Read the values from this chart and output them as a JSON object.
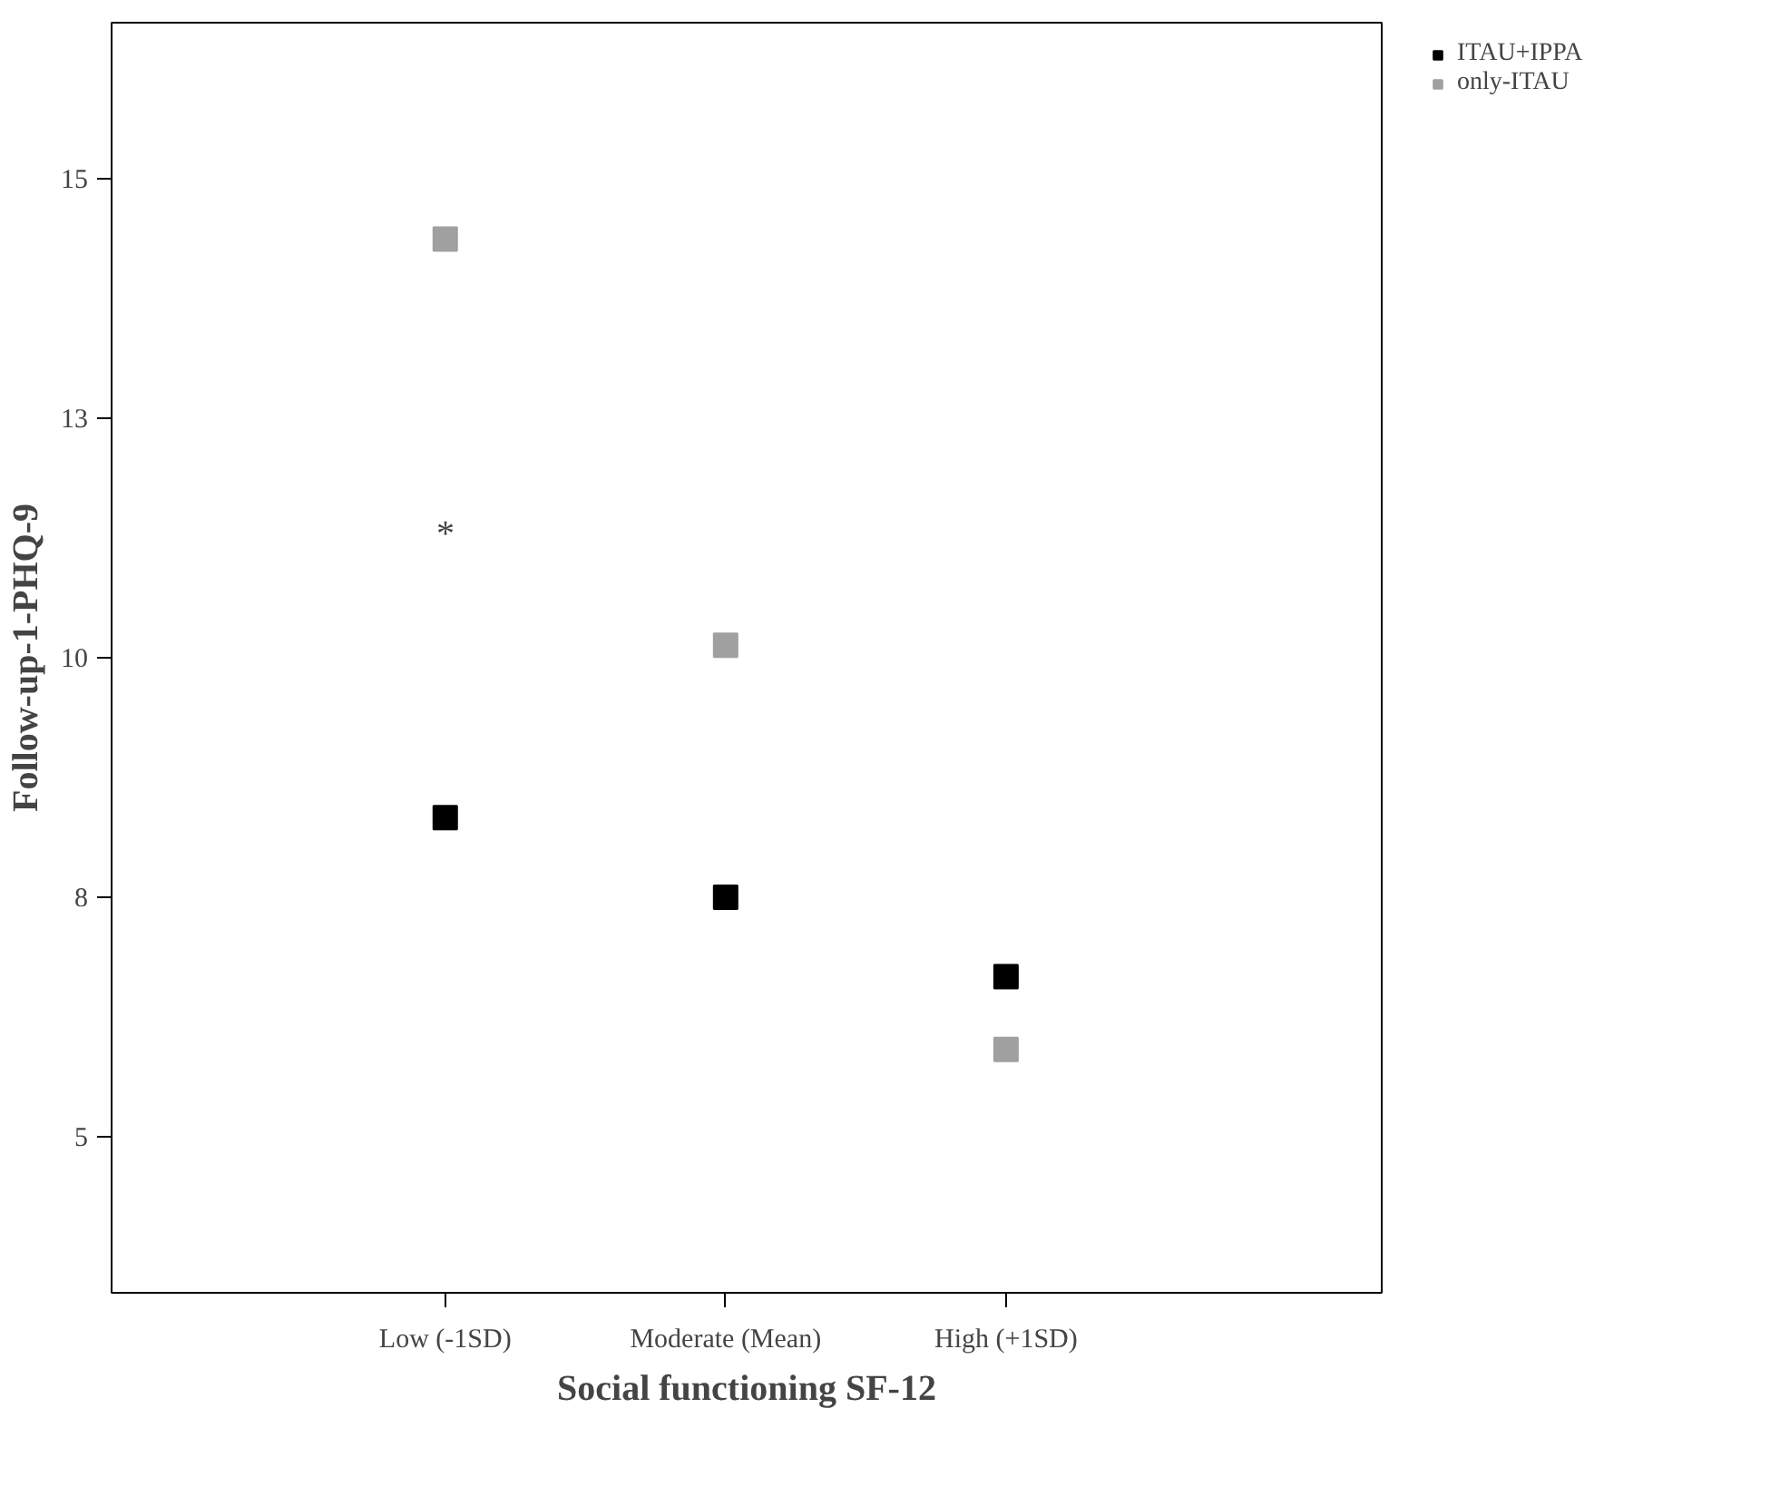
{
  "chart_data": {
    "type": "scatter",
    "xlabel": "Social functioning SF-12",
    "ylabel": "Follow-up-1-PHQ-9",
    "categories": [
      "Low (-1SD)",
      "Moderate (Mean)",
      "High (+1SD)"
    ],
    "series": [
      {
        "name": "ITAU+IPPA",
        "color": "#000000",
        "values": [
          8.33,
          7.5,
          6.67
        ]
      },
      {
        "name": "only-ITAU",
        "color": "#a0a0a0",
        "values": [
          14.37,
          10.13,
          5.91
        ]
      }
    ],
    "ylim": [
      3.37,
      16.63
    ],
    "yticks": [
      5,
      {
        "value": 7.5,
        "label": "8"
      },
      10,
      {
        "value": 12.5,
        "label": "13"
      },
      15
    ],
    "annotations": [
      "*"
    ],
    "marker": "square",
    "grid": false,
    "legend": "top right"
  }
}
